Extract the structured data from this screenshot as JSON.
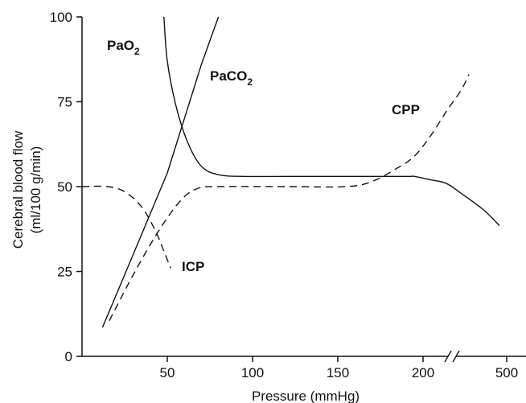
{
  "chart_data": {
    "type": "line",
    "xlabel": "Pressure (mmHg)",
    "ylabel_lines": [
      "Cerebral blood flow",
      "(ml/100 g/min)"
    ],
    "ylim": [
      0,
      100
    ],
    "x_ticks": [
      "50",
      "100",
      "150",
      "200",
      "500"
    ],
    "y_ticks": [
      "0",
      "25",
      "50",
      "75",
      "100"
    ],
    "x_axis_break_between": [
      "200",
      "500"
    ],
    "grid": false,
    "legend": "none (curves labeled directly)",
    "series": [
      {
        "label_main": "Pa",
        "label_tail": "O",
        "label_sub": "2",
        "style": "solid",
        "points": [
          [
            48,
            100
          ],
          [
            50,
            87
          ],
          [
            55,
            74
          ],
          [
            62,
            63
          ],
          [
            70,
            56
          ],
          [
            80,
            53.5
          ],
          [
            95,
            53
          ],
          [
            120,
            53
          ],
          [
            160,
            53
          ],
          [
            190,
            53
          ],
          [
            195,
            53
          ],
          [
            205,
            52
          ],
          [
            215,
            51
          ],
          [
            225,
            48
          ],
          [
            240,
            43
          ],
          [
            250,
            38.5
          ]
        ]
      },
      {
        "label_main": "PaC",
        "label_tail": "O",
        "label_sub": "2",
        "style": "solid",
        "points": [
          [
            12,
            8.5
          ],
          [
            30,
            30
          ],
          [
            50,
            54
          ],
          [
            60,
            70
          ],
          [
            70,
            86
          ],
          [
            80,
            100
          ]
        ]
      },
      {
        "label": "CPP",
        "style": "dashed",
        "points": [
          [
            16,
            10.5
          ],
          [
            30,
            24
          ],
          [
            45,
            37
          ],
          [
            58,
            46
          ],
          [
            68,
            49.5
          ],
          [
            80,
            50
          ],
          [
            120,
            50
          ],
          [
            155,
            50
          ],
          [
            170,
            51.5
          ],
          [
            185,
            55.5
          ],
          [
            195,
            59
          ],
          [
            205,
            65
          ],
          [
            215,
            72
          ],
          [
            225,
            78.5
          ],
          [
            230,
            83
          ]
        ]
      },
      {
        "label": "ICP",
        "style": "dashed",
        "points": [
          [
            0,
            50
          ],
          [
            15,
            50
          ],
          [
            25,
            48.5
          ],
          [
            35,
            44
          ],
          [
            43,
            37
          ],
          [
            48,
            31
          ],
          [
            52,
            26
          ]
        ]
      }
    ]
  }
}
